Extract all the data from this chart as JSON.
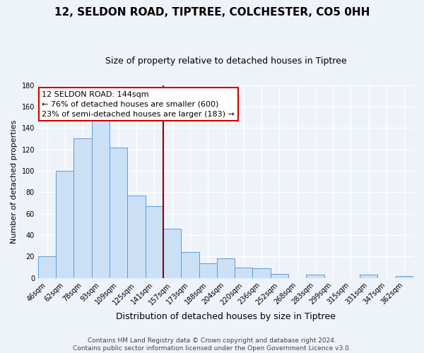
{
  "title": "12, SELDON ROAD, TIPTREE, COLCHESTER, CO5 0HH",
  "subtitle": "Size of property relative to detached houses in Tiptree",
  "xlabel": "Distribution of detached houses by size in Tiptree",
  "ylabel": "Number of detached properties",
  "categories": [
    "46sqm",
    "62sqm",
    "78sqm",
    "93sqm",
    "109sqm",
    "125sqm",
    "141sqm",
    "157sqm",
    "173sqm",
    "188sqm",
    "204sqm",
    "220sqm",
    "236sqm",
    "252sqm",
    "268sqm",
    "283sqm",
    "299sqm",
    "315sqm",
    "331sqm",
    "347sqm",
    "362sqm"
  ],
  "values": [
    20,
    100,
    130,
    147,
    122,
    77,
    67,
    46,
    24,
    14,
    18,
    10,
    9,
    4,
    0,
    3,
    0,
    0,
    3,
    0,
    2
  ],
  "bar_color": "#cce0f5",
  "bar_edge_color": "#5b9bd5",
  "vline_x_index": 6.5,
  "vline_color": "#8b0000",
  "ylim": [
    0,
    180
  ],
  "yticks": [
    0,
    20,
    40,
    60,
    80,
    100,
    120,
    140,
    160,
    180
  ],
  "annotation_lines": [
    "12 SELDON ROAD: 144sqm",
    "← 76% of detached houses are smaller (600)",
    "23% of semi-detached houses are larger (183) →"
  ],
  "annotation_box_color": "#ffffff",
  "annotation_box_edge_color": "#cc0000",
  "footer_lines": [
    "Contains HM Land Registry data © Crown copyright and database right 2024.",
    "Contains public sector information licensed under the Open Government Licence v3.0."
  ],
  "bg_color": "#eef2f9",
  "grid_color": "#ffffff",
  "title_fontsize": 11,
  "subtitle_fontsize": 9,
  "xlabel_fontsize": 9,
  "ylabel_fontsize": 8,
  "tick_fontsize": 7,
  "ann_fontsize": 8,
  "footer_fontsize": 6.5
}
